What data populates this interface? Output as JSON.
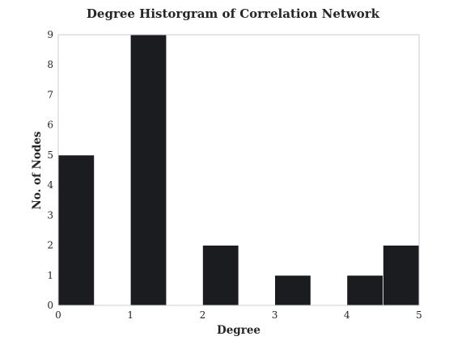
{
  "chart_data": {
    "type": "bar",
    "title": "Degree Historgram of Correlation Network",
    "xlabel": "Degree",
    "ylabel": "No. of Nodes",
    "bins": [
      {
        "x0": 0.0,
        "x1": 0.5,
        "value": 5
      },
      {
        "x0": 0.5,
        "x1": 1.0,
        "value": 0
      },
      {
        "x0": 1.0,
        "x1": 1.5,
        "value": 9
      },
      {
        "x0": 1.5,
        "x1": 2.0,
        "value": 0
      },
      {
        "x0": 2.0,
        "x1": 2.5,
        "value": 2
      },
      {
        "x0": 2.5,
        "x1": 3.0,
        "value": 0
      },
      {
        "x0": 3.0,
        "x1": 3.5,
        "value": 1
      },
      {
        "x0": 3.5,
        "x1": 4.0,
        "value": 0
      },
      {
        "x0": 4.0,
        "x1": 4.5,
        "value": 1
      },
      {
        "x0": 4.5,
        "x1": 5.0,
        "value": 2
      }
    ],
    "xlim": [
      0,
      5
    ],
    "ylim": [
      0,
      9
    ],
    "xticks": [
      "0",
      "1",
      "2",
      "3",
      "4",
      "5"
    ],
    "yticks": [
      "0",
      "1",
      "2",
      "3",
      "4",
      "5",
      "6",
      "7",
      "8",
      "9"
    ],
    "grid": false,
    "bar_color": "#1b1c1f",
    "frame_color": "#cccccc"
  }
}
